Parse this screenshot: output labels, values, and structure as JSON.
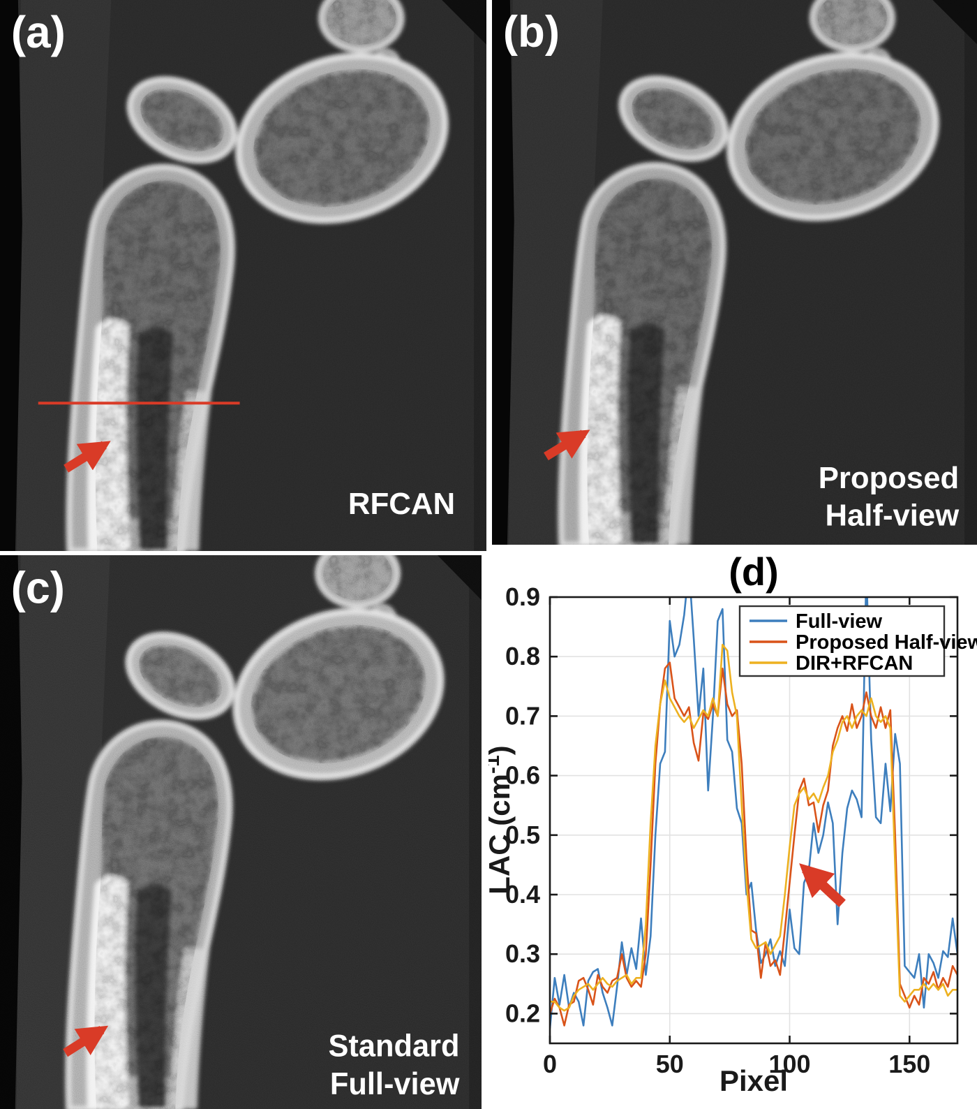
{
  "figure": {
    "background": "#ffffff",
    "annotation_color": "#d93b27",
    "panels": {
      "a": {
        "letter": "(a)",
        "method_label": "RFCAN"
      },
      "b": {
        "letter": "(b)",
        "method_label_line1": "Proposed",
        "method_label_line2": "Half-view"
      },
      "c": {
        "letter": "(c)",
        "method_label_line1": "Standard",
        "method_label_line2": "Full-view"
      },
      "d": {
        "letter": "(d)"
      }
    }
  },
  "chart_data": {
    "type": "line",
    "title": "(d)",
    "xlabel": "Pixel",
    "ylabel": "LAC (cm⁻¹)",
    "ylabel_parts": {
      "pre": "LAC (cm",
      "sup": "-1",
      "post": ")"
    },
    "xlim": [
      0,
      170
    ],
    "ylim": [
      0.15,
      0.9
    ],
    "xticks": [
      0,
      50,
      100,
      150
    ],
    "yticks": [
      0.2,
      0.3,
      0.4,
      0.5,
      0.6,
      0.7,
      0.8,
      0.9
    ],
    "grid": true,
    "legend_position": "top-right-inside",
    "axis_color": "#1a1a1a",
    "grid_color": "#e2e2e2",
    "arrow": {
      "tip": [
        103,
        0.435
      ],
      "tail": [
        122,
        0.385
      ]
    },
    "x": [
      0,
      2,
      4,
      6,
      8,
      10,
      12,
      14,
      16,
      18,
      20,
      22,
      24,
      26,
      28,
      30,
      32,
      34,
      36,
      38,
      40,
      42,
      44,
      46,
      48,
      50,
      52,
      54,
      56,
      58,
      60,
      62,
      64,
      66,
      68,
      70,
      72,
      74,
      76,
      78,
      80,
      82,
      84,
      86,
      88,
      90,
      92,
      94,
      96,
      98,
      100,
      102,
      104,
      106,
      108,
      110,
      112,
      114,
      116,
      118,
      120,
      122,
      124,
      126,
      128,
      130,
      132,
      134,
      136,
      138,
      140,
      142,
      144,
      146,
      148,
      150,
      152,
      154,
      156,
      158,
      160,
      162,
      164,
      166,
      168,
      170,
      172
    ],
    "series": [
      {
        "name": "Full-view",
        "color": "#3d7ebd",
        "values": [
          0.175,
          0.26,
          0.215,
          0.265,
          0.21,
          0.235,
          0.22,
          0.18,
          0.255,
          0.27,
          0.275,
          0.235,
          0.21,
          0.18,
          0.245,
          0.32,
          0.265,
          0.31,
          0.275,
          0.36,
          0.265,
          0.33,
          0.5,
          0.62,
          0.64,
          0.86,
          0.8,
          0.82,
          0.87,
          0.95,
          0.83,
          0.7,
          0.78,
          0.575,
          0.7,
          0.86,
          0.88,
          0.66,
          0.64,
          0.545,
          0.52,
          0.4,
          0.42,
          0.34,
          0.285,
          0.3,
          0.325,
          0.28,
          0.305,
          0.28,
          0.375,
          0.31,
          0.3,
          0.42,
          0.44,
          0.52,
          0.47,
          0.5,
          0.555,
          0.52,
          0.35,
          0.47,
          0.545,
          0.575,
          0.56,
          0.53,
          0.95,
          0.66,
          0.53,
          0.52,
          0.62,
          0.54,
          0.67,
          0.62,
          0.28,
          0.27,
          0.26,
          0.3,
          0.21,
          0.3,
          0.285,
          0.26,
          0.305,
          0.295,
          0.36,
          0.3,
          0.31
        ]
      },
      {
        "name": "Proposed Half-view",
        "color": "#d95319",
        "values": [
          0.2,
          0.225,
          0.21,
          0.18,
          0.215,
          0.22,
          0.255,
          0.26,
          0.24,
          0.215,
          0.265,
          0.245,
          0.235,
          0.255,
          0.26,
          0.3,
          0.26,
          0.245,
          0.255,
          0.245,
          0.3,
          0.45,
          0.62,
          0.72,
          0.78,
          0.79,
          0.73,
          0.715,
          0.7,
          0.715,
          0.655,
          0.625,
          0.705,
          0.695,
          0.72,
          0.7,
          0.78,
          0.72,
          0.7,
          0.71,
          0.62,
          0.46,
          0.34,
          0.335,
          0.26,
          0.32,
          0.28,
          0.29,
          0.265,
          0.34,
          0.42,
          0.5,
          0.575,
          0.595,
          0.55,
          0.555,
          0.505,
          0.55,
          0.575,
          0.65,
          0.68,
          0.7,
          0.675,
          0.72,
          0.68,
          0.7,
          0.74,
          0.7,
          0.68,
          0.715,
          0.68,
          0.71,
          0.5,
          0.25,
          0.23,
          0.21,
          0.23,
          0.215,
          0.26,
          0.25,
          0.27,
          0.24,
          0.26,
          0.245,
          0.28,
          0.265,
          0.22
        ]
      },
      {
        "name": "DIR+RFCAN",
        "color": "#edb120",
        "values": [
          0.22,
          0.22,
          0.21,
          0.205,
          0.21,
          0.23,
          0.24,
          0.245,
          0.25,
          0.24,
          0.25,
          0.26,
          0.25,
          0.245,
          0.255,
          0.26,
          0.265,
          0.25,
          0.26,
          0.26,
          0.35,
          0.52,
          0.65,
          0.72,
          0.76,
          0.73,
          0.715,
          0.7,
          0.69,
          0.7,
          0.68,
          0.695,
          0.71,
          0.7,
          0.73,
          0.7,
          0.82,
          0.81,
          0.74,
          0.7,
          0.55,
          0.42,
          0.325,
          0.31,
          0.315,
          0.32,
          0.3,
          0.315,
          0.33,
          0.4,
          0.48,
          0.55,
          0.57,
          0.58,
          0.56,
          0.57,
          0.555,
          0.58,
          0.6,
          0.64,
          0.66,
          0.69,
          0.7,
          0.68,
          0.7,
          0.71,
          0.7,
          0.73,
          0.7,
          0.69,
          0.7,
          0.68,
          0.45,
          0.23,
          0.22,
          0.23,
          0.24,
          0.24,
          0.25,
          0.24,
          0.25,
          0.24,
          0.25,
          0.23,
          0.24,
          0.24,
          0.23
        ]
      }
    ]
  }
}
